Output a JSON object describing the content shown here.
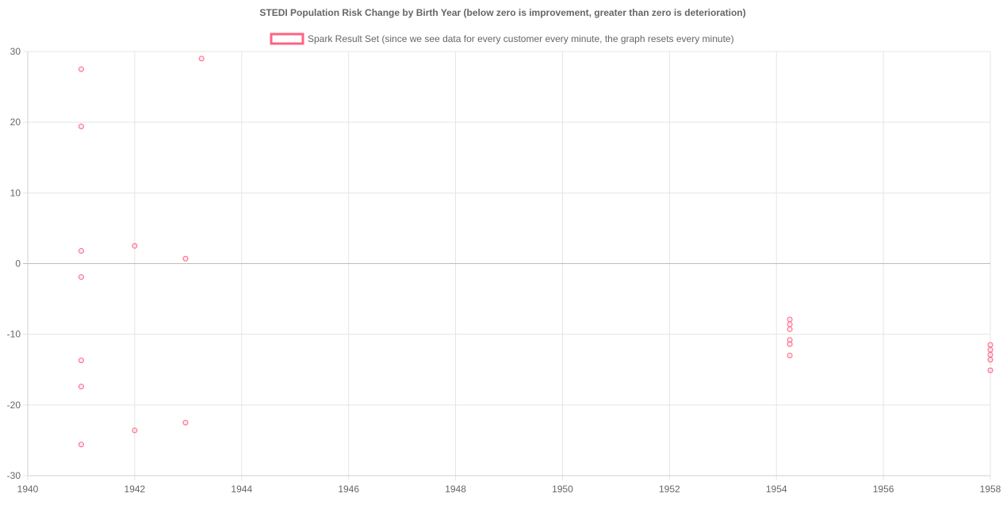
{
  "chart_data": {
    "type": "scatter",
    "title": "STEDI Population Risk Change by Birth Year (below zero is improvement, greater than zero is deterioration)",
    "xlabel": "",
    "ylabel": "",
    "xlim": [
      1940,
      1958
    ],
    "ylim": [
      -30,
      30
    ],
    "x_ticks": [
      1940,
      1942,
      1944,
      1946,
      1948,
      1950,
      1952,
      1954,
      1956,
      1958
    ],
    "y_ticks": [
      30,
      20,
      10,
      0,
      -10,
      -20,
      -30
    ],
    "grid": true,
    "legend_position": "top-center",
    "series": [
      {
        "name": "Spark Result Set (since we see data for every customer every minute, the graph resets every minute)",
        "color": "#ff6384",
        "marker": "circle-outline",
        "points": [
          {
            "x": 1941,
            "y": 27.5
          },
          {
            "x": 1941,
            "y": 19.4
          },
          {
            "x": 1941,
            "y": 1.8
          },
          {
            "x": 1941,
            "y": -1.9
          },
          {
            "x": 1941,
            "y": -13.7
          },
          {
            "x": 1941,
            "y": -17.4
          },
          {
            "x": 1941,
            "y": -25.6
          },
          {
            "x": 1942,
            "y": 2.5
          },
          {
            "x": 1942,
            "y": -23.6
          },
          {
            "x": 1942.95,
            "y": 0.7
          },
          {
            "x": 1942.95,
            "y": -22.5
          },
          {
            "x": 1943.25,
            "y": 29
          },
          {
            "x": 1954.25,
            "y": -7.9
          },
          {
            "x": 1954.25,
            "y": -8.6
          },
          {
            "x": 1954.25,
            "y": -9.3
          },
          {
            "x": 1954.25,
            "y": -10.8
          },
          {
            "x": 1954.25,
            "y": -11.4
          },
          {
            "x": 1954.25,
            "y": -13
          },
          {
            "x": 1958,
            "y": -11.5
          },
          {
            "x": 1958,
            "y": -12.2
          },
          {
            "x": 1958,
            "y": -12.9
          },
          {
            "x": 1958,
            "y": -13.6
          },
          {
            "x": 1958,
            "y": -15.1
          }
        ]
      }
    ]
  }
}
